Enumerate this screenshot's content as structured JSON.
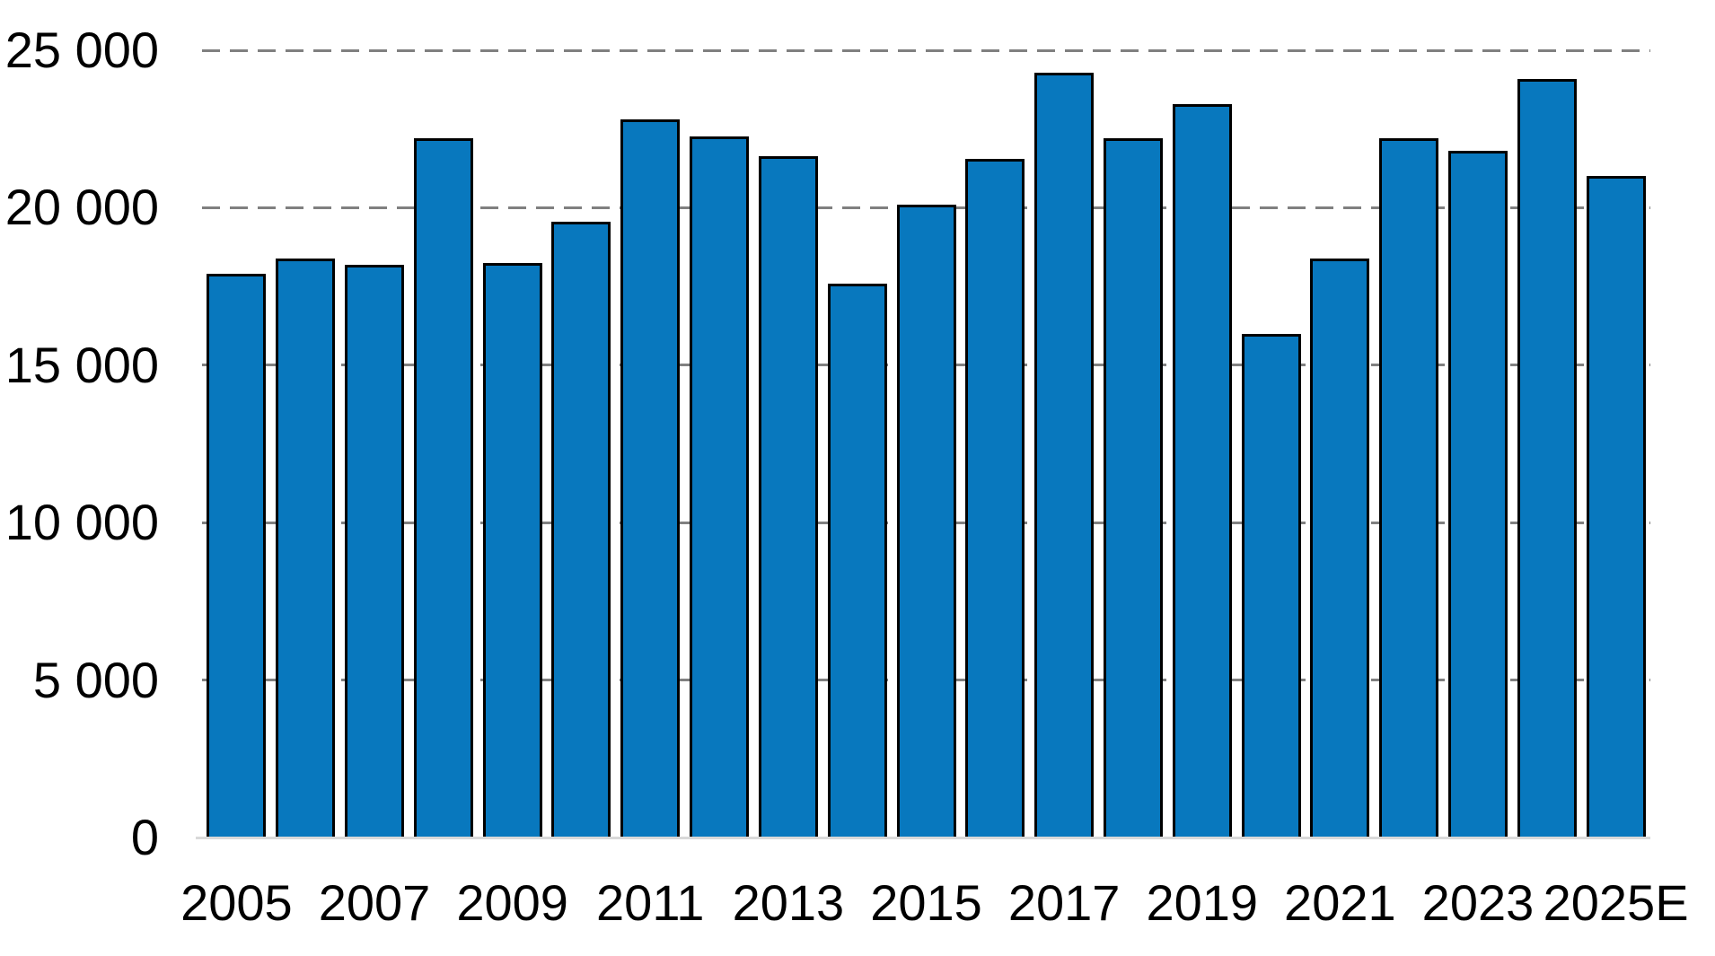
{
  "chart_data": {
    "type": "bar",
    "categories": [
      "2005",
      "2006",
      "2007",
      "2008",
      "2009",
      "2010",
      "2011",
      "2012",
      "2013",
      "2014",
      "2015",
      "2016",
      "2017",
      "2018",
      "2019",
      "2020",
      "2021",
      "2022",
      "2023",
      "2024",
      "2025E"
    ],
    "values": [
      17900,
      18400,
      18200,
      22200,
      18250,
      19550,
      22800,
      22250,
      21650,
      17600,
      20100,
      21550,
      24300,
      22200,
      23300,
      16000,
      18400,
      22200,
      21800,
      24100,
      21000
    ],
    "x_tick_labels": [
      "2005",
      "2007",
      "2009",
      "2011",
      "2013",
      "2015",
      "2017",
      "2019",
      "2021",
      "2023",
      "2025E"
    ],
    "y_tick_values": [
      0,
      5000,
      10000,
      15000,
      20000,
      25000
    ],
    "y_tick_labels": [
      "0",
      "5 000",
      "10 000",
      "15 000",
      "20 000",
      "25 000"
    ],
    "ylim": [
      0,
      25000
    ],
    "title": "",
    "xlabel": "",
    "ylabel": "",
    "legend": "none",
    "grid": "horizontal dashed gridlines every 5 000, drawn behind bars",
    "colors": {
      "bar_fill": "#0878BE",
      "bar_outline": "#000000",
      "gridline": "#808080",
      "axis_baseline": "#D9D9D9",
      "text": "#000000",
      "background": "#FFFFFF"
    }
  }
}
